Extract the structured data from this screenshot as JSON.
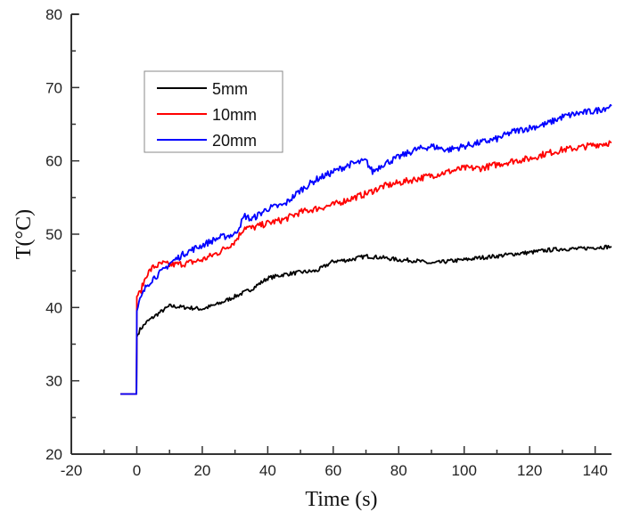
{
  "chart_data": {
    "type": "line",
    "title": "",
    "xlabel": "Time (s)",
    "ylabel": "T(°C)",
    "xlim": [
      -20,
      145
    ],
    "ylim": [
      20,
      80
    ],
    "xticks": [
      -20,
      0,
      20,
      40,
      60,
      80,
      100,
      120,
      140
    ],
    "xtick_labels": [
      "-20",
      "0",
      "20",
      "40",
      "60",
      "80",
      "100",
      "120",
      "140"
    ],
    "yticks": [
      20,
      30,
      40,
      50,
      60,
      70,
      80
    ],
    "ytick_labels": [
      "20",
      "30",
      "40",
      "50",
      "60",
      "70",
      "80"
    ],
    "grid": false,
    "legend": {
      "position": "top-left",
      "entries": [
        "5mm",
        "10mm",
        "20mm"
      ]
    },
    "series": [
      {
        "name": "5mm",
        "color": "#000000",
        "x": [
          -5,
          -0.1,
          0,
          1,
          3,
          6,
          10,
          15,
          20,
          25,
          30,
          35,
          40,
          45,
          50,
          55,
          60,
          65,
          70,
          75,
          80,
          85,
          90,
          95,
          100,
          105,
          110,
          115,
          120,
          125,
          130,
          135,
          140,
          145
        ],
        "y": [
          28.2,
          28.2,
          36,
          37,
          38,
          39,
          40.2,
          40,
          39.8,
          40.5,
          41.5,
          42.5,
          44,
          44.5,
          44.8,
          45,
          46.3,
          46.5,
          47,
          46.8,
          46.5,
          46.4,
          46,
          46.3,
          46.5,
          46.8,
          47,
          47.3,
          47.5,
          47.8,
          48,
          48,
          48.2,
          48.3
        ]
      },
      {
        "name": "10mm",
        "color": "#ff0000",
        "x": [
          -5,
          -0.1,
          0,
          1,
          3,
          5,
          8,
          10,
          15,
          20,
          25,
          30,
          33,
          35,
          40,
          45,
          50,
          55,
          60,
          65,
          70,
          75,
          80,
          85,
          90,
          95,
          100,
          105,
          110,
          115,
          120,
          125,
          130,
          135,
          140,
          145
        ],
        "y": [
          28.2,
          28.2,
          41.5,
          42,
          44.5,
          45.5,
          46,
          45.8,
          46,
          46.5,
          47.5,
          49,
          51,
          50.8,
          51.5,
          52,
          53,
          53.5,
          54,
          54.8,
          55.5,
          56.5,
          57,
          57.5,
          58,
          58.5,
          59,
          59,
          59.5,
          60,
          60.3,
          61,
          61.5,
          61.8,
          62.2,
          62.5
        ]
      },
      {
        "name": "20mm",
        "color": "#0000ff",
        "x": [
          -5,
          -0.1,
          0,
          1,
          3,
          5,
          8,
          10,
          15,
          20,
          25,
          30,
          33,
          35,
          40,
          45,
          50,
          55,
          60,
          65,
          70,
          72,
          75,
          80,
          85,
          90,
          95,
          100,
          105,
          110,
          115,
          120,
          125,
          130,
          135,
          140,
          145
        ],
        "y": [
          28.2,
          28.2,
          39.5,
          41,
          43,
          44,
          45,
          46,
          47.5,
          48.5,
          49.5,
          50,
          52.5,
          52,
          53.5,
          54,
          56,
          57.5,
          58.5,
          59.5,
          60,
          58.5,
          59.5,
          60.5,
          61.5,
          62,
          61.5,
          62,
          62.5,
          63,
          64,
          64.5,
          65,
          66,
          66.5,
          66.8,
          67.5
        ]
      }
    ]
  }
}
